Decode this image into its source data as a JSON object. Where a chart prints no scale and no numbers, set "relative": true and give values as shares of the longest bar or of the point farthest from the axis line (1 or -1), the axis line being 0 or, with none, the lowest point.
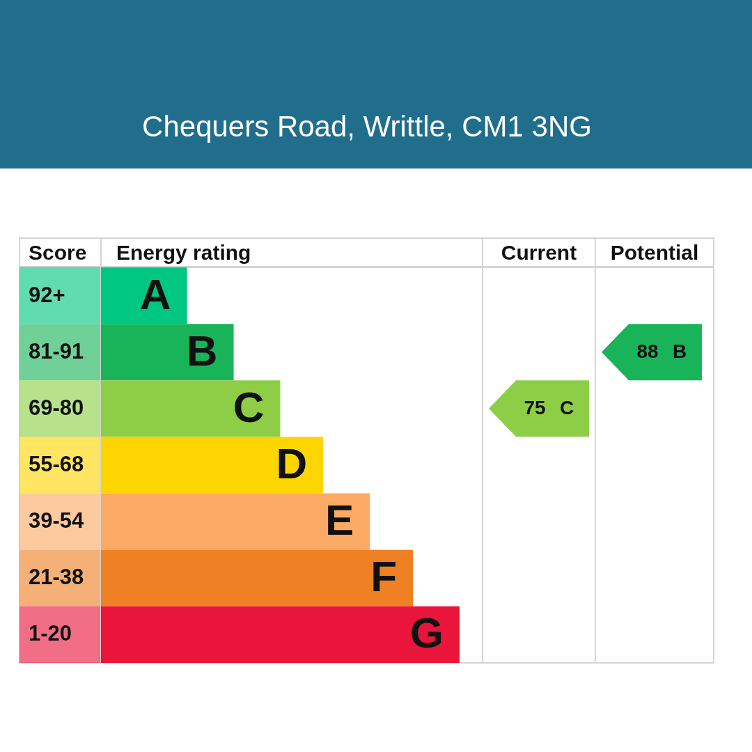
{
  "chart_data": [
    {
      "type": "bar",
      "orientation": "horizontal",
      "relative": true,
      "title": "Chequers Road, Writtle, CM1 3NG",
      "ylabel": "Score",
      "xlabel": "Energy rating",
      "categories": [
        "92+",
        "81-91",
        "69-80",
        "55-68",
        "39-54",
        "21-38",
        "1-20"
      ],
      "values": [
        0.24,
        0.37,
        0.5,
        0.62,
        0.75,
        0.87,
        1
      ],
      "colors": [
        "#00c781",
        "#19b459",
        "#8dce46",
        "#ffd500",
        "#fcaa65",
        "#ef8023",
        "#e9153b"
      ],
      "annotations": [
        {
          "text": "A",
          "x": 0.24,
          "y": "92+"
        },
        {
          "text": "B",
          "x": 0.37,
          "y": "81-91"
        },
        {
          "text": "C",
          "x": 0.5,
          "y": "69-80"
        },
        {
          "text": "D",
          "x": 0.62,
          "y": "55-68"
        },
        {
          "text": "E",
          "x": 0.75,
          "y": "39-54"
        },
        {
          "text": "F",
          "x": 0.87,
          "y": "21-38"
        },
        {
          "text": "G",
          "x": 1,
          "y": "1-20"
        }
      ]
    },
    {
      "type": "heatmap",
      "categories": [
        "Current",
        "Potential"
      ],
      "y_categories": [
        "92+",
        "81-91",
        "69-80",
        "55-68",
        "39-54",
        "21-38",
        "1-20"
      ],
      "tick_labels": "x",
      "data_labels": true,
      "cells": [
        [
          null,
          null
        ],
        [
          null,
          88
        ],
        [
          75,
          null
        ],
        [
          null,
          null
        ],
        [
          null,
          null
        ],
        [
          null,
          null
        ],
        [
          null,
          null
        ]
      ]
    }
  ]
}
